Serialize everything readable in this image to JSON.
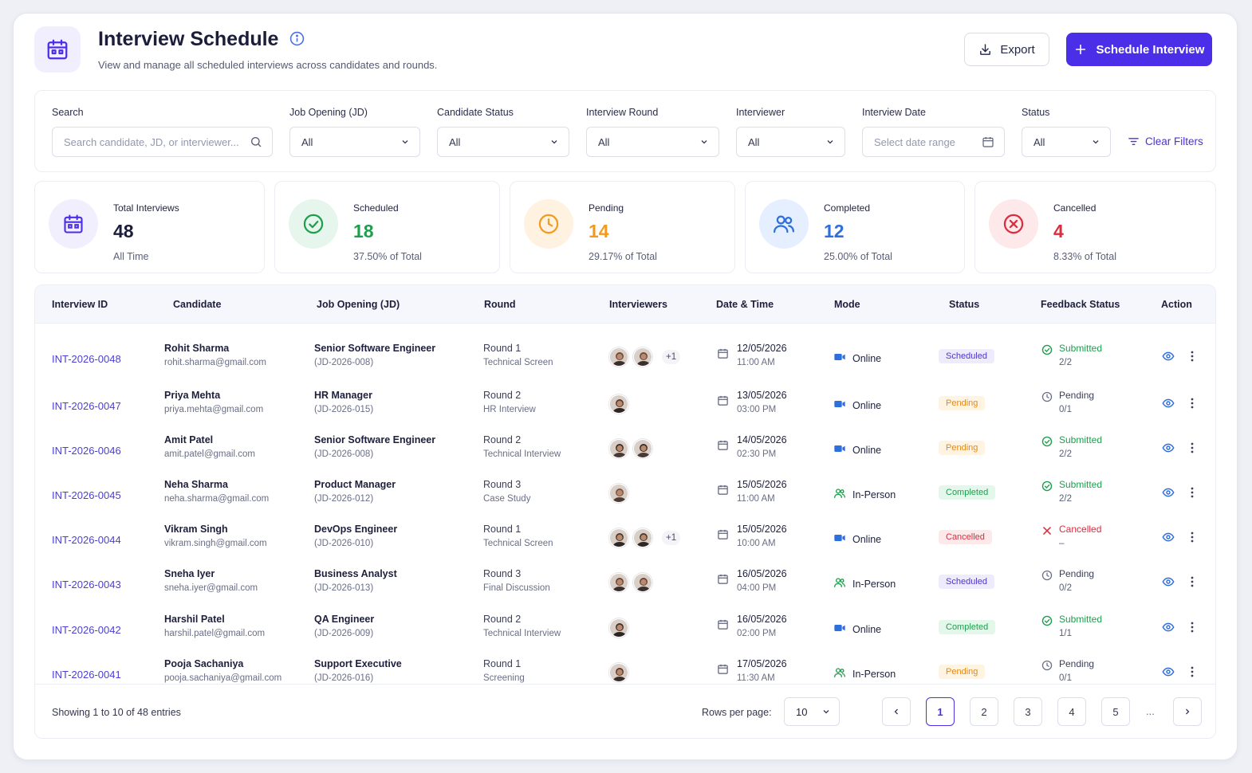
{
  "header": {
    "title": "Interview Schedule",
    "subtitle": "View and manage all scheduled interviews across candidates and rounds.",
    "export_label": "Export",
    "schedule_label": "Schedule Interview"
  },
  "filters": {
    "search_label": "Search",
    "search_placeholder": "Search candidate, JD, or interviewer...",
    "job_label": "Job Opening (JD)",
    "job_value": "All",
    "candidate_status_label": "Candidate Status",
    "candidate_status_value": "All",
    "round_label": "Interview Round",
    "round_value": "All",
    "interviewer_label": "Interviewer",
    "interviewer_value": "All",
    "date_label": "Interview Date",
    "date_placeholder": "Select date range",
    "status_label": "Status",
    "status_value": "All",
    "clear_label": "Clear Filters"
  },
  "stats": [
    {
      "label": "Total Interviews",
      "value": "48",
      "sub": "All Time",
      "color": "#1b1d3a"
    },
    {
      "label": "Scheduled",
      "value": "18",
      "sub": "37.50% of Total",
      "color": "#1f9e4e"
    },
    {
      "label": "Pending",
      "value": "14",
      "sub": "29.17% of Total",
      "color": "#f29a1f"
    },
    {
      "label": "Completed",
      "value": "12",
      "sub": "25.00% of Total",
      "color": "#2f6fdc"
    },
    {
      "label": "Cancelled",
      "value": "4",
      "sub": "8.33% of Total",
      "color": "#d92e3f"
    }
  ],
  "table": {
    "headers": [
      "Interview ID",
      "Candidate",
      "Job Opening (JD)",
      "Round",
      "Interviewers",
      "Date & Time",
      "Mode",
      "Status",
      "Feedback Status",
      "Action"
    ],
    "rows": [
      {
        "id": "INT-2026-0048",
        "name": "Rohit Sharma",
        "email": "rohit.sharma@gmail.com",
        "job": "Senior Software Engineer",
        "jd": "(JD-2026-008)",
        "round": "Round 1",
        "round_type": "Technical Screen",
        "plus": "+1",
        "date": "12/05/2026",
        "time": "11:00 AM",
        "mode": "Online",
        "status": "Scheduled",
        "fb": "Submitted",
        "fb_count": "2/2"
      },
      {
        "id": "INT-2026-0047",
        "name": "Priya Mehta",
        "email": "priya.mehta@gmail.com",
        "job": "HR Manager",
        "jd": "(JD-2026-015)",
        "round": "Round 2",
        "round_type": "HR Interview",
        "plus": "",
        "date": "13/05/2026",
        "time": "03:00 PM",
        "mode": "Online",
        "status": "Pending",
        "fb": "Pending",
        "fb_count": "0/1"
      },
      {
        "id": "INT-2026-0046",
        "name": "Amit Patel",
        "email": "amit.patel@gmail.com",
        "job": "Senior Software Engineer",
        "jd": "(JD-2026-008)",
        "round": "Round 2",
        "round_type": "Technical Interview",
        "plus": "",
        "date": "14/05/2026",
        "time": "02:30 PM",
        "mode": "Online",
        "status": "Pending",
        "fb": "Submitted",
        "fb_count": "2/2"
      },
      {
        "id": "INT-2026-0045",
        "name": "Neha Sharma",
        "email": "neha.sharma@gmail.com",
        "job": "Product Manager",
        "jd": "(JD-2026-012)",
        "round": "Round 3",
        "round_type": "Case Study",
        "plus": "",
        "date": "15/05/2026",
        "time": "11:00 AM",
        "mode": "In-Person",
        "status": "Completed",
        "fb": "Submitted",
        "fb_count": "2/2"
      },
      {
        "id": "INT-2026-0044",
        "name": "Vikram Singh",
        "email": "vikram.singh@gmail.com",
        "job": "DevOps Engineer",
        "jd": "(JD-2026-010)",
        "round": "Round 1",
        "round_type": "Technical Screen",
        "plus": "+1",
        "date": "15/05/2026",
        "time": "10:00 AM",
        "mode": "Online",
        "status": "Cancelled",
        "fb": "Cancelled",
        "fb_count": "–"
      },
      {
        "id": "INT-2026-0043",
        "name": "Sneha Iyer",
        "email": "sneha.iyer@gmail.com",
        "job": "Business Analyst",
        "jd": "(JD-2026-013)",
        "round": "Round 3",
        "round_type": "Final Discussion",
        "plus": "",
        "date": "16/05/2026",
        "time": "04:00 PM",
        "mode": "In-Person",
        "status": "Scheduled",
        "fb": "Pending",
        "fb_count": "0/2"
      },
      {
        "id": "INT-2026-0042",
        "name": "Harshil Patel",
        "email": "harshil.patel@gmail.com",
        "job": "QA Engineer",
        "jd": "(JD-2026-009)",
        "round": "Round 2",
        "round_type": "Technical Interview",
        "plus": "",
        "date": "16/05/2026",
        "time": "02:00 PM",
        "mode": "Online",
        "status": "Completed",
        "fb": "Submitted",
        "fb_count": "1/1"
      },
      {
        "id": "INT-2026-0041",
        "name": "Pooja Sachaniya",
        "email": "pooja.sachaniya@gmail.com",
        "job": "Support Executive",
        "jd": "(JD-2026-016)",
        "round": "Round 1",
        "round_type": "Screening",
        "plus": "",
        "date": "17/05/2026",
        "time": "11:30 AM",
        "mode": "In-Person",
        "status": "Pending",
        "fb": "Pending",
        "fb_count": "0/1"
      }
    ]
  },
  "footer": {
    "showing": "Showing 1 to 10 of 48 entries",
    "rows_per_page_label": "Rows per page:",
    "rows_per_page_value": "10",
    "pages": [
      "1",
      "2",
      "3",
      "4",
      "5"
    ],
    "active_page": "1",
    "ellipsis": "..."
  },
  "colors": {
    "accent": "#4b2ee8",
    "scheduled": "#4b37c8",
    "pending": "#e08b1a",
    "completed": "#1f9e4e",
    "cancelled": "#d92e3f"
  },
  "icons": {
    "header": "calendar-icon",
    "info": "info-icon",
    "export": "download-icon",
    "schedule": "plus-icon",
    "search": "search-icon",
    "dropdown": "chevron-down-icon",
    "date": "calendar-icon",
    "clear": "filter-icon",
    "online": "video-icon",
    "in_person": "users-icon",
    "view": "eye-icon",
    "more": "more-vertical-icon"
  }
}
